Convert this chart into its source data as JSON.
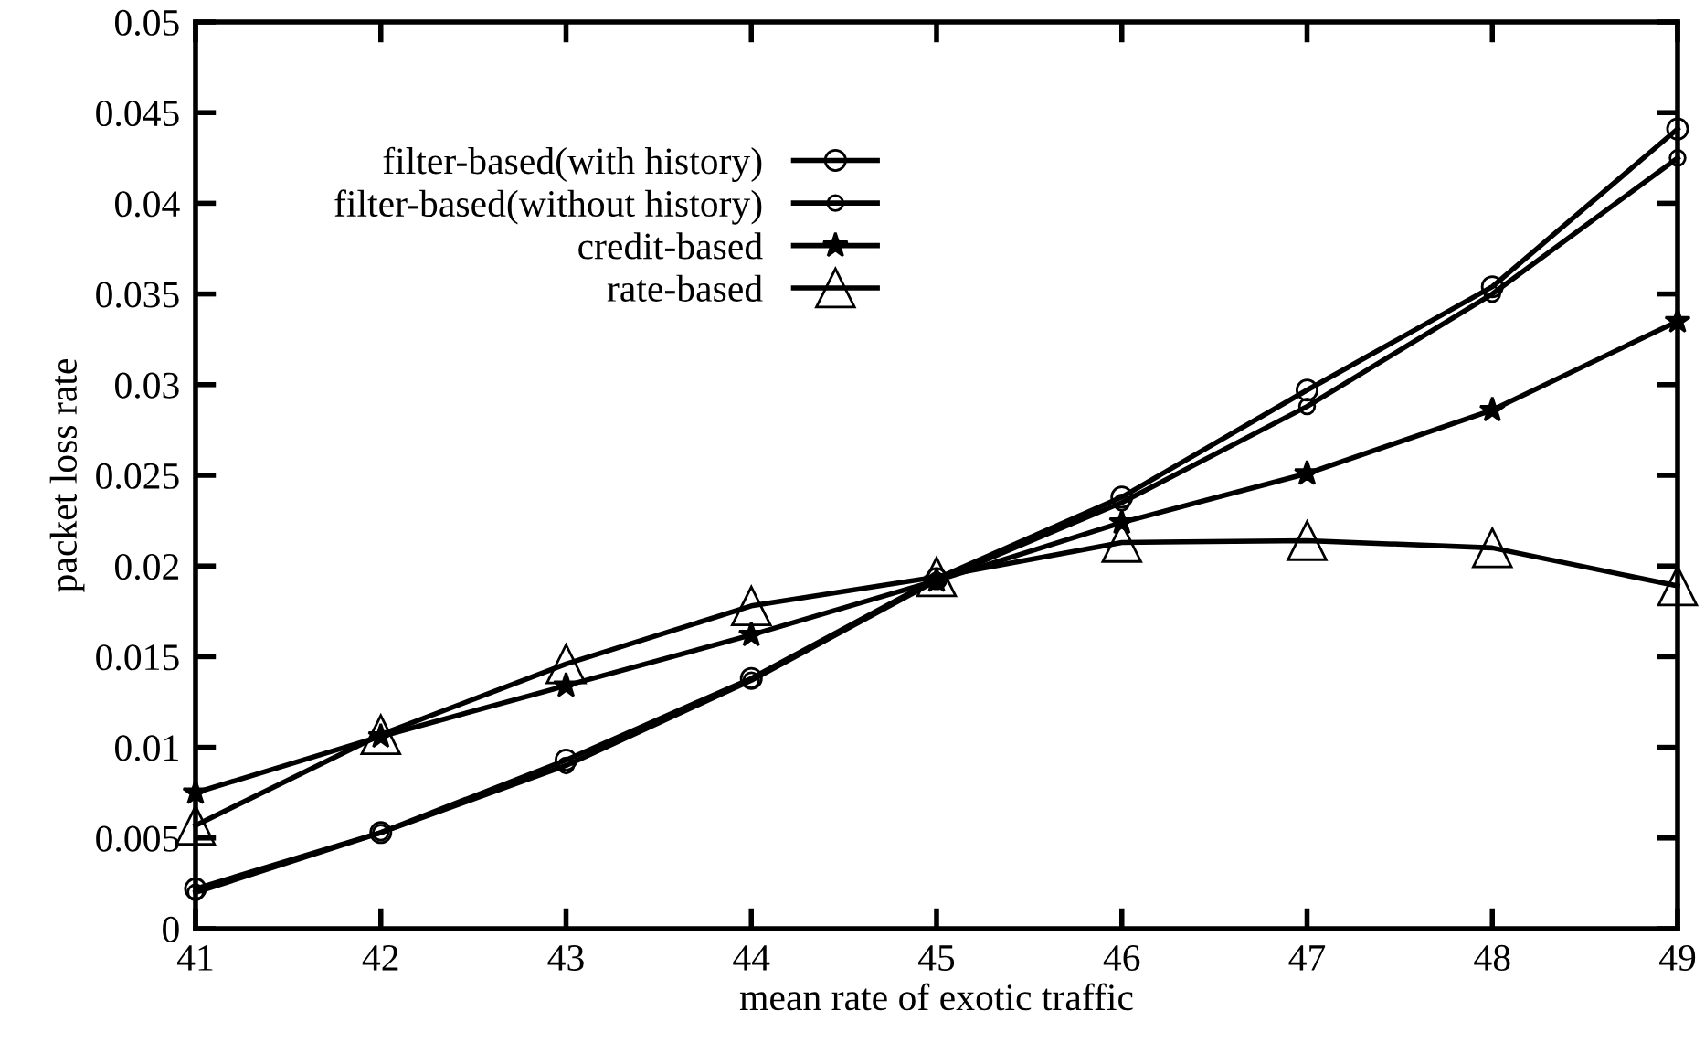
{
  "chart_data": {
    "type": "line",
    "xlabel": "mean rate of exotic traffic",
    "ylabel": "packet loss rate",
    "x": [
      41,
      42,
      43,
      44,
      45,
      46,
      47,
      48,
      49
    ],
    "xlim": [
      41,
      49
    ],
    "xticks": [
      41,
      42,
      43,
      44,
      45,
      46,
      47,
      48,
      49
    ],
    "ylim": [
      0,
      0.05
    ],
    "yticks": [
      0,
      0.005,
      0.01,
      0.015,
      0.02,
      0.025,
      0.03,
      0.035,
      0.04,
      0.045,
      0.05
    ],
    "grid": false,
    "legend": "top left",
    "line_style": "solid",
    "series": [
      {
        "name": "filter-based(with history)",
        "color": "#000000",
        "marker": "circle",
        "values": [
          0.0022,
          0.0053,
          0.0093,
          0.0138,
          0.0193,
          0.0238,
          0.0297,
          0.0354,
          0.0441
        ]
      },
      {
        "name": "filter-based(without history)",
        "color": "#000000",
        "marker": "circle",
        "values": [
          0.002,
          0.0053,
          0.009,
          0.0137,
          0.0192,
          0.0235,
          0.0288,
          0.035,
          0.0425
        ]
      },
      {
        "name": "credit-based",
        "color": "#000000",
        "marker": "star",
        "values": [
          0.0075,
          0.0106,
          0.0134,
          0.0162,
          0.0192,
          0.0224,
          0.0251,
          0.0286,
          0.0335
        ]
      },
      {
        "name": "rate-based",
        "color": "#000000",
        "marker": "triangle",
        "values": [
          0.0057,
          0.0107,
          0.0146,
          0.0178,
          0.0194,
          0.0213,
          0.0214,
          0.021,
          0.0189
        ]
      }
    ]
  }
}
